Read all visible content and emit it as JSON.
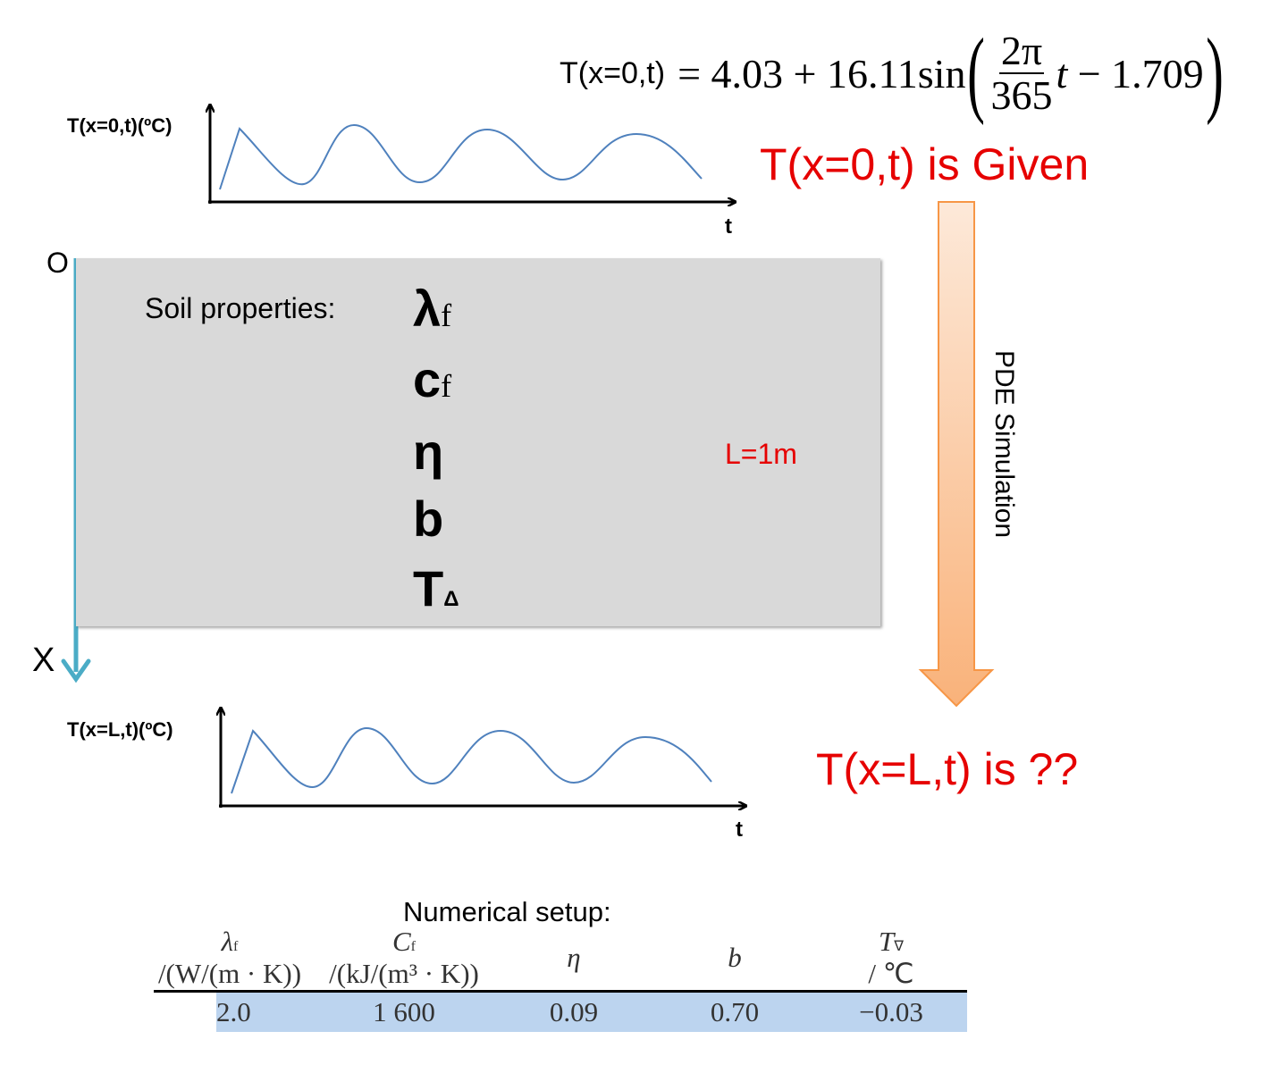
{
  "equation": {
    "lhs": "T(x=0,t)",
    "equals": "=",
    "constant": "4.03",
    "plus": "+",
    "amplitude": "16.11",
    "func": "sin",
    "frac_num": "2π",
    "frac_den": "365",
    "var": "t",
    "minus": "−",
    "phase": "1.709"
  },
  "top_plot": {
    "ylabel": "T(x=0,t)(ºC)",
    "xlabel": "t"
  },
  "bottom_plot": {
    "ylabel": "T(x=L,t)(ºC)",
    "xlabel": "t"
  },
  "given_text": "T(x=0,t) is Given",
  "unknown_text": "T(x=L,t) is ??",
  "arrow_label": "PDE Simulation",
  "soil": {
    "origin_label": "O",
    "axis_label": "X",
    "properties_label": "Soil properties:",
    "length_label": "L=1m",
    "props": [
      {
        "sym": "λ",
        "sub": "f"
      },
      {
        "sym": "c",
        "sub": "f"
      },
      {
        "sym": "η",
        "sub": ""
      },
      {
        "sym": "b",
        "sub": ""
      },
      {
        "sym": "T",
        "sub": "Δ"
      }
    ]
  },
  "numerical": {
    "title": "Numerical setup:",
    "headers": [
      {
        "sym": "λ",
        "sub": "f",
        "unit": "/(W/(m · K))"
      },
      {
        "sym": "C",
        "sub": "f",
        "unit": "/(kJ/(m³ · K))"
      },
      {
        "sym": "η",
        "sub": "",
        "unit": ""
      },
      {
        "sym": "b",
        "sub": "",
        "unit": ""
      },
      {
        "sym": "T",
        "sub": "∇",
        "unit": "/ ℃"
      }
    ],
    "values": [
      "2.0",
      "1 600",
      "0.09",
      "0.70",
      "−0.03"
    ]
  },
  "colors": {
    "red": "#e60000",
    "axis_blue": "#4bacc6",
    "curve_blue": "#4f81bd",
    "arrow_orange_light": "#fde9d9",
    "arrow_orange": "#f9b27a",
    "panel_gray": "#d9d9d9",
    "row_highlight": "#bcd4ef"
  }
}
